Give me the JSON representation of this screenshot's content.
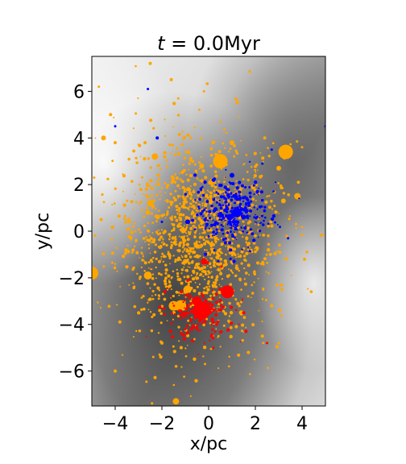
{
  "chart_data": {
    "type": "scatter",
    "title_prefix": "t = ",
    "title_value": "0.0",
    "title_unit": "Myr",
    "xlabel": "x/pc",
    "ylabel": "y/pc",
    "xlim": [
      -5.0,
      5.0
    ],
    "ylim": [
      -7.5,
      7.5
    ],
    "xticks": [
      -4,
      -2,
      0,
      2,
      4
    ],
    "yticks": [
      -6,
      -4,
      -2,
      0,
      2,
      4,
      6
    ],
    "xtick_labels": [
      "−4",
      "−2",
      "0",
      "2",
      "4"
    ],
    "ytick_labels": [
      "−6",
      "−4",
      "−2",
      "0",
      "2",
      "4",
      "6"
    ],
    "grid": false,
    "background": "grayscale gas density map",
    "colors": {
      "orange": "#ffa500",
      "blue": "#0000ff",
      "red": "#ff0000"
    },
    "series": [
      {
        "color": "orange",
        "points": [
          [
            0.5,
            3.0,
            9
          ],
          [
            3.3,
            3.4,
            9
          ],
          [
            -5.0,
            -1.8,
            8
          ],
          [
            -1.2,
            -3.2,
            7
          ],
          [
            -1.5,
            -3.2,
            6
          ],
          [
            -0.9,
            -2.5,
            5
          ],
          [
            -2.6,
            -1.9,
            5
          ],
          [
            -2.5,
            1.2,
            4
          ],
          [
            -2.3,
            3.2,
            4
          ],
          [
            3.8,
            1.5,
            4
          ],
          [
            -1.4,
            -7.3,
            4
          ],
          [
            -4.5,
            4.0,
            3
          ],
          [
            -2.6,
            0.8,
            3
          ],
          [
            -0.3,
            2.8,
            3
          ],
          [
            1.0,
            3.8,
            3
          ],
          [
            1.9,
            1.9,
            3
          ],
          [
            3.0,
            2.7,
            3
          ],
          [
            3.2,
            1.3,
            3
          ],
          [
            -1.0,
            -1.3,
            3
          ],
          [
            1.4,
            -3.5,
            3
          ],
          [
            -2.5,
            7.2,
            2
          ],
          [
            -1.6,
            6.5,
            2
          ],
          [
            -4.2,
            5.0,
            2
          ],
          [
            -4.0,
            3.8,
            2
          ],
          [
            -4.6,
            0.5,
            2
          ],
          [
            -3.8,
            -3.9,
            2
          ],
          [
            -4.0,
            -6.0,
            2
          ],
          [
            -2.0,
            -4.8,
            2
          ],
          [
            2.3,
            -4.5,
            2
          ],
          [
            2.7,
            -3.2,
            2
          ],
          [
            1.7,
            -5.2,
            2
          ],
          [
            4.1,
            -1.2,
            2
          ],
          [
            2.4,
            4.0,
            2
          ],
          [
            -0.2,
            6.0,
            1.5
          ],
          [
            -1.3,
            5.7,
            1.5
          ],
          [
            -4.7,
            6.2,
            1.5
          ],
          [
            -4.9,
            2.3,
            1.5
          ],
          [
            4.0,
            3.6,
            1.5
          ],
          [
            3.0,
            -4.8,
            1.5
          ],
          [
            -2.1,
            -5.3,
            1.5
          ]
        ],
        "cloud": {
          "count": 1400,
          "cx": -0.5,
          "cy": -0.3,
          "sx": 1.7,
          "sy": 2.1
        }
      },
      {
        "color": "blue",
        "points": [
          [
            1.2,
            0.8,
            6
          ],
          [
            0.9,
            0.6,
            4
          ],
          [
            1.5,
            0.6,
            3
          ],
          [
            1.0,
            2.4,
            3
          ],
          [
            -0.9,
            0.4,
            3
          ],
          [
            0.9,
            -0.5,
            2
          ],
          [
            -2.2,
            4.0,
            2
          ],
          [
            -2.6,
            6.1,
            1.5
          ],
          [
            -4.0,
            4.5,
            1.5
          ],
          [
            5.0,
            4.5,
            1.5
          ],
          [
            2.7,
            3.5,
            1.5
          ],
          [
            2.3,
            2.9,
            1.5
          ],
          [
            3.4,
            -0.3,
            1.5
          ],
          [
            -2.0,
            0.4,
            1.5
          ]
        ],
        "cloud": {
          "count": 300,
          "cx": 1.0,
          "cy": 0.8,
          "sx": 0.75,
          "sy": 0.75
        }
      },
      {
        "color": "red",
        "points": [
          [
            -0.3,
            -3.4,
            11
          ],
          [
            0.8,
            -2.6,
            8
          ],
          [
            -0.5,
            -3.0,
            6
          ],
          [
            -0.2,
            -1.3,
            4
          ],
          [
            1.5,
            -3.5,
            2
          ],
          [
            1.6,
            -4.3,
            2
          ],
          [
            2.5,
            -4.8,
            1.5
          ],
          [
            0.2,
            -5.0,
            1.5
          ],
          [
            -1.0,
            -4.2,
            1.5
          ]
        ],
        "cloud": {
          "count": 180,
          "cx": -0.3,
          "cy": -3.5,
          "sx": 0.7,
          "sy": 0.6
        }
      }
    ]
  }
}
